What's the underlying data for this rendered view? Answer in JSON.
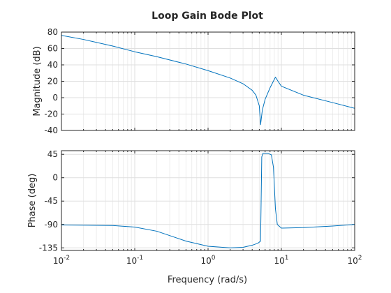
{
  "chart_data": {
    "type": "line",
    "title": "Loop Gain Bode Plot",
    "xlabel": "Frequency (rad/s)",
    "xscale": "log",
    "xlim": [
      0.01,
      100
    ],
    "x_ticks": [
      {
        "base": "10",
        "exp": "-2"
      },
      {
        "base": "10",
        "exp": "-1"
      },
      {
        "base": "10",
        "exp": "0"
      },
      {
        "base": "10",
        "exp": "1"
      },
      {
        "base": "10",
        "exp": "2"
      }
    ],
    "grid": true,
    "line_color": "#0072BD",
    "magnitude": {
      "ylabel": "Magnitude (dB)",
      "ylim": [
        -40,
        80
      ],
      "y_ticks": [
        "80",
        "60",
        "40",
        "20",
        "0",
        "-20",
        "-40"
      ],
      "points": [
        [
          0.01,
          76
        ],
        [
          0.02,
          71
        ],
        [
          0.05,
          63
        ],
        [
          0.1,
          56
        ],
        [
          0.2,
          50
        ],
        [
          0.5,
          41
        ],
        [
          1,
          33
        ],
        [
          2,
          24
        ],
        [
          3,
          17
        ],
        [
          4,
          9
        ],
        [
          4.5,
          3
        ],
        [
          5,
          -10
        ],
        [
          5.2,
          -33
        ],
        [
          5.5,
          -15
        ],
        [
          6,
          -2
        ],
        [
          7,
          12
        ],
        [
          8.3,
          25
        ],
        [
          9,
          20
        ],
        [
          10,
          14
        ],
        [
          20,
          3
        ],
        [
          50,
          -6
        ],
        [
          100,
          -13
        ]
      ]
    },
    "phase": {
      "ylabel": "Phase (deg)",
      "ylim": [
        -140,
        52
      ],
      "y_ticks": [
        "45",
        "0",
        "-45",
        "-90",
        "-135"
      ],
      "points": [
        [
          0.01,
          -91
        ],
        [
          0.05,
          -92
        ],
        [
          0.1,
          -95
        ],
        [
          0.2,
          -103
        ],
        [
          0.5,
          -122
        ],
        [
          1,
          -132
        ],
        [
          2,
          -135
        ],
        [
          3,
          -134
        ],
        [
          4,
          -130
        ],
        [
          4.8,
          -126
        ],
        [
          5.2,
          -122
        ],
        [
          5.4,
          40
        ],
        [
          5.6,
          47
        ],
        [
          6.5,
          47
        ],
        [
          7.3,
          44
        ],
        [
          7.8,
          20
        ],
        [
          8.3,
          -60
        ],
        [
          8.8,
          -90
        ],
        [
          10,
          -97
        ],
        [
          20,
          -96
        ],
        [
          50,
          -93
        ],
        [
          100,
          -90
        ]
      ]
    }
  }
}
